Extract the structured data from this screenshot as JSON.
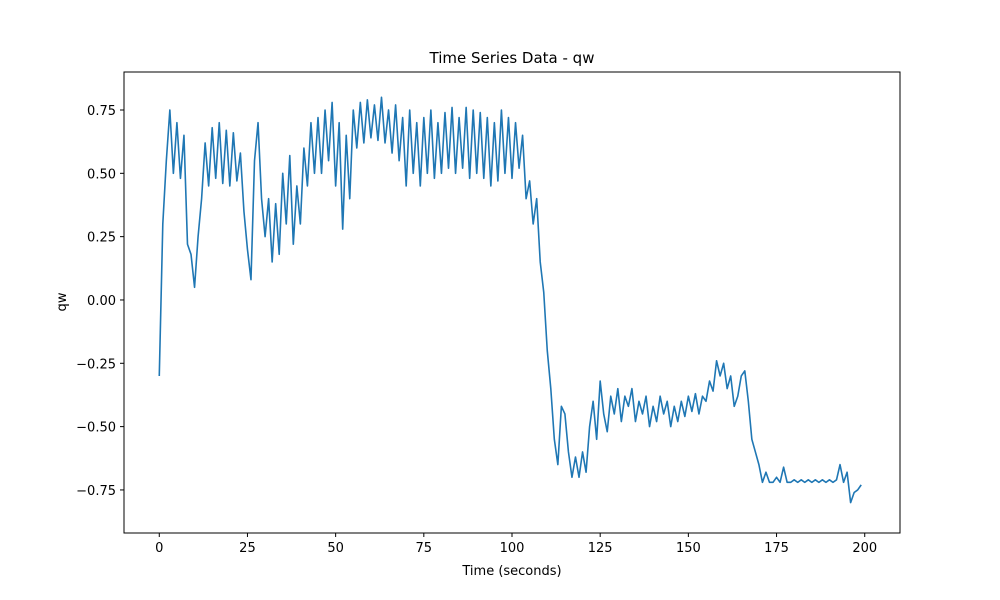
{
  "chart_data": {
    "type": "line",
    "title": "Time Series Data - qw",
    "xlabel": "Time (seconds)",
    "ylabel": "qw",
    "color": "#1f77b4",
    "x": [
      0,
      1,
      2,
      3,
      4,
      5,
      6,
      7,
      8,
      9,
      10,
      11,
      12,
      13,
      14,
      15,
      16,
      17,
      18,
      19,
      20,
      21,
      22,
      23,
      24,
      25,
      26,
      27,
      28,
      29,
      30,
      31,
      32,
      33,
      34,
      35,
      36,
      37,
      38,
      39,
      40,
      41,
      42,
      43,
      44,
      45,
      46,
      47,
      48,
      49,
      50,
      51,
      52,
      53,
      54,
      55,
      56,
      57,
      58,
      59,
      60,
      61,
      62,
      63,
      64,
      65,
      66,
      67,
      68,
      69,
      70,
      71,
      72,
      73,
      74,
      75,
      76,
      77,
      78,
      79,
      80,
      81,
      82,
      83,
      84,
      85,
      86,
      87,
      88,
      89,
      90,
      91,
      92,
      93,
      94,
      95,
      96,
      97,
      98,
      99,
      100,
      101,
      102,
      103,
      104,
      105,
      106,
      107,
      108,
      109,
      110,
      111,
      112,
      113,
      114,
      115,
      116,
      117,
      118,
      119,
      120,
      121,
      122,
      123,
      124,
      125,
      126,
      127,
      128,
      129,
      130,
      131,
      132,
      133,
      134,
      135,
      136,
      137,
      138,
      139,
      140,
      141,
      142,
      143,
      144,
      145,
      146,
      147,
      148,
      149,
      150,
      151,
      152,
      153,
      154,
      155,
      156,
      157,
      158,
      159,
      160,
      161,
      162,
      163,
      164,
      165,
      166,
      167,
      168,
      169,
      170,
      171,
      172,
      173,
      174,
      175,
      176,
      177,
      178,
      179,
      180,
      181,
      182,
      183,
      184,
      185,
      186,
      187,
      188,
      189,
      190,
      191,
      192,
      193,
      194,
      195,
      196,
      197,
      198,
      199
    ],
    "values": [
      -0.3,
      0.3,
      0.55,
      0.75,
      0.5,
      0.7,
      0.48,
      0.65,
      0.22,
      0.18,
      0.05,
      0.25,
      0.4,
      0.62,
      0.45,
      0.68,
      0.48,
      0.7,
      0.46,
      0.67,
      0.45,
      0.66,
      0.47,
      0.58,
      0.35,
      0.2,
      0.08,
      0.55,
      0.7,
      0.4,
      0.25,
      0.4,
      0.15,
      0.38,
      0.18,
      0.5,
      0.3,
      0.57,
      0.22,
      0.45,
      0.3,
      0.6,
      0.45,
      0.7,
      0.5,
      0.72,
      0.5,
      0.75,
      0.55,
      0.78,
      0.45,
      0.7,
      0.28,
      0.65,
      0.4,
      0.75,
      0.6,
      0.78,
      0.62,
      0.79,
      0.64,
      0.77,
      0.63,
      0.8,
      0.62,
      0.75,
      0.58,
      0.77,
      0.55,
      0.72,
      0.45,
      0.75,
      0.5,
      0.7,
      0.45,
      0.72,
      0.5,
      0.75,
      0.48,
      0.7,
      0.5,
      0.74,
      0.52,
      0.76,
      0.5,
      0.72,
      0.52,
      0.76,
      0.48,
      0.75,
      0.5,
      0.74,
      0.48,
      0.72,
      0.45,
      0.7,
      0.47,
      0.75,
      0.5,
      0.72,
      0.48,
      0.7,
      0.52,
      0.65,
      0.4,
      0.47,
      0.3,
      0.4,
      0.15,
      0.03,
      -0.2,
      -0.35,
      -0.55,
      -0.65,
      -0.42,
      -0.45,
      -0.6,
      -0.7,
      -0.62,
      -0.7,
      -0.6,
      -0.68,
      -0.5,
      -0.4,
      -0.55,
      -0.32,
      -0.45,
      -0.52,
      -0.38,
      -0.45,
      -0.35,
      -0.48,
      -0.38,
      -0.42,
      -0.35,
      -0.48,
      -0.4,
      -0.45,
      -0.38,
      -0.5,
      -0.42,
      -0.48,
      -0.38,
      -0.45,
      -0.4,
      -0.5,
      -0.42,
      -0.48,
      -0.4,
      -0.46,
      -0.38,
      -0.44,
      -0.37,
      -0.45,
      -0.38,
      -0.4,
      -0.32,
      -0.36,
      -0.24,
      -0.3,
      -0.25,
      -0.35,
      -0.3,
      -0.42,
      -0.38,
      -0.3,
      -0.28,
      -0.4,
      -0.55,
      -0.6,
      -0.65,
      -0.72,
      -0.68,
      -0.72,
      -0.72,
      -0.7,
      -0.72,
      -0.66,
      -0.72,
      -0.72,
      -0.71,
      -0.72,
      -0.71,
      -0.72,
      -0.71,
      -0.72,
      -0.71,
      -0.72,
      -0.71,
      -0.72,
      -0.71,
      -0.72,
      -0.71,
      -0.65,
      -0.72,
      -0.68,
      -0.8,
      -0.76,
      -0.75,
      -0.73
    ],
    "xlim": [
      -10,
      210
    ],
    "ylim": [
      -0.92,
      0.9
    ],
    "xticks": [
      0,
      25,
      50,
      75,
      100,
      125,
      150,
      175,
      200
    ],
    "yticks": [
      {
        "value": -0.75,
        "label": "−0.75"
      },
      {
        "value": -0.5,
        "label": "−0.50"
      },
      {
        "value": -0.25,
        "label": "−0.25"
      },
      {
        "value": 0,
        "label": "0.00"
      },
      0.25,
      {
        "value": 0.5,
        "label": "0.50"
      },
      0.75
    ]
  }
}
